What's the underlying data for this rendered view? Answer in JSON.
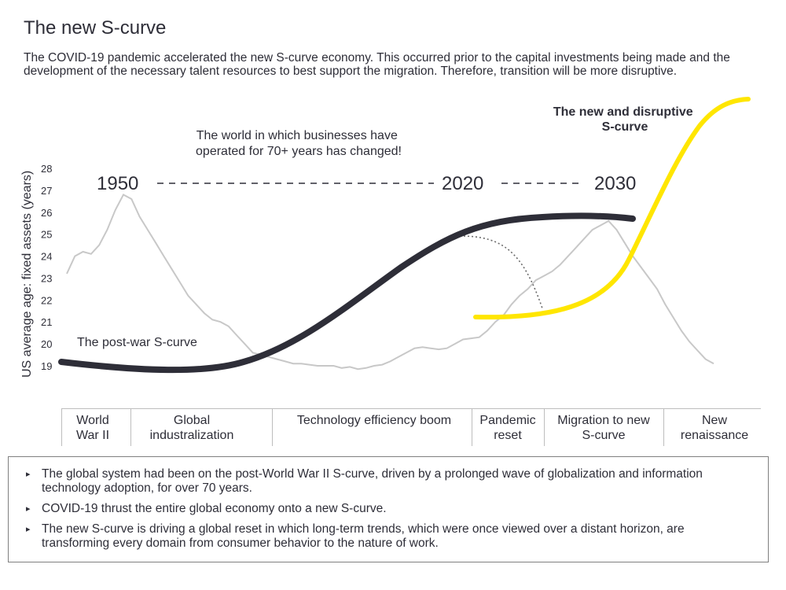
{
  "title": "The new S-curve",
  "intro": "The COVID-19 pandemic accelerated the new S-curve economy. This occurred prior to the capital investments being made and the development of the necessary talent resources to best support the migration. Therefore, transition will be more disruptive.",
  "chart_data": {
    "type": "line",
    "ylabel": "US average age: fixed assets (years)",
    "y_ticks": [
      "28",
      "27",
      "26",
      "25",
      "24",
      "23",
      "22",
      "21",
      "20",
      "19"
    ],
    "ylim": [
      19,
      28
    ],
    "annotations": {
      "world_changed": "The world in which businesses have operated for 70+ years has changed!",
      "year_1950": "1950",
      "year_2020": "2020",
      "year_2030": "2030",
      "post_war_label": "The post-war S-curve",
      "new_curve_label": "The new and disruptive S-curve"
    },
    "series": [
      {
        "name": "US average age: fixed assets",
        "color": "#c8c8c8",
        "values": [
          23.2,
          24,
          24.2,
          24.1,
          24.5,
          25.2,
          26.1,
          26.8,
          26.6,
          25.8,
          25.2,
          24.6,
          24,
          23.4,
          22.8,
          22.2,
          21.8,
          21.4,
          21.1,
          21,
          20.8,
          20.4,
          20,
          19.6,
          19.5,
          19.4,
          19.3,
          19.2,
          19.1,
          19.1,
          19.05,
          19,
          19,
          19,
          18.9,
          18.95,
          18.85,
          18.9,
          19,
          19.05,
          19.2,
          19.4,
          19.6,
          19.8,
          19.85,
          19.8,
          19.75,
          19.8,
          20,
          20.2,
          20.25,
          20.3,
          20.6,
          21,
          21.3,
          21.8,
          22.2,
          22.5,
          22.9,
          23.1,
          23.3,
          23.6,
          24,
          24.4,
          24.8,
          25.2,
          25.4,
          25.6,
          25.2,
          24.6,
          24,
          23.5,
          23,
          22.5,
          21.8,
          21.2,
          20.6,
          20.1,
          19.7,
          19.3,
          19.1
        ]
      }
    ],
    "post_war_curve_color": "#2e2e38",
    "new_curve_color": "#ffe600",
    "dotted_decline_color": "#6b6b6b"
  },
  "phases": [
    {
      "label": "World War II"
    },
    {
      "label": "Global industralization"
    },
    {
      "label": "Technology efficiency boom"
    },
    {
      "label": "Pandemic reset"
    },
    {
      "label": "Migration to new S-curve"
    },
    {
      "label": "New renaissance"
    }
  ],
  "notes": [
    "The global system had been on the post-World War II S-curve, driven by a prolonged wave of globalization and information technology adoption, for over 70 years.",
    "COVID-19 thrust the entire global economy onto a new S-curve.",
    "The new S-curve is driving a global reset in which long-term trends, which were once viewed over a distant horizon, are transforming every domain from consumer behavior to the nature of work."
  ],
  "bullet_glyph": "▸"
}
